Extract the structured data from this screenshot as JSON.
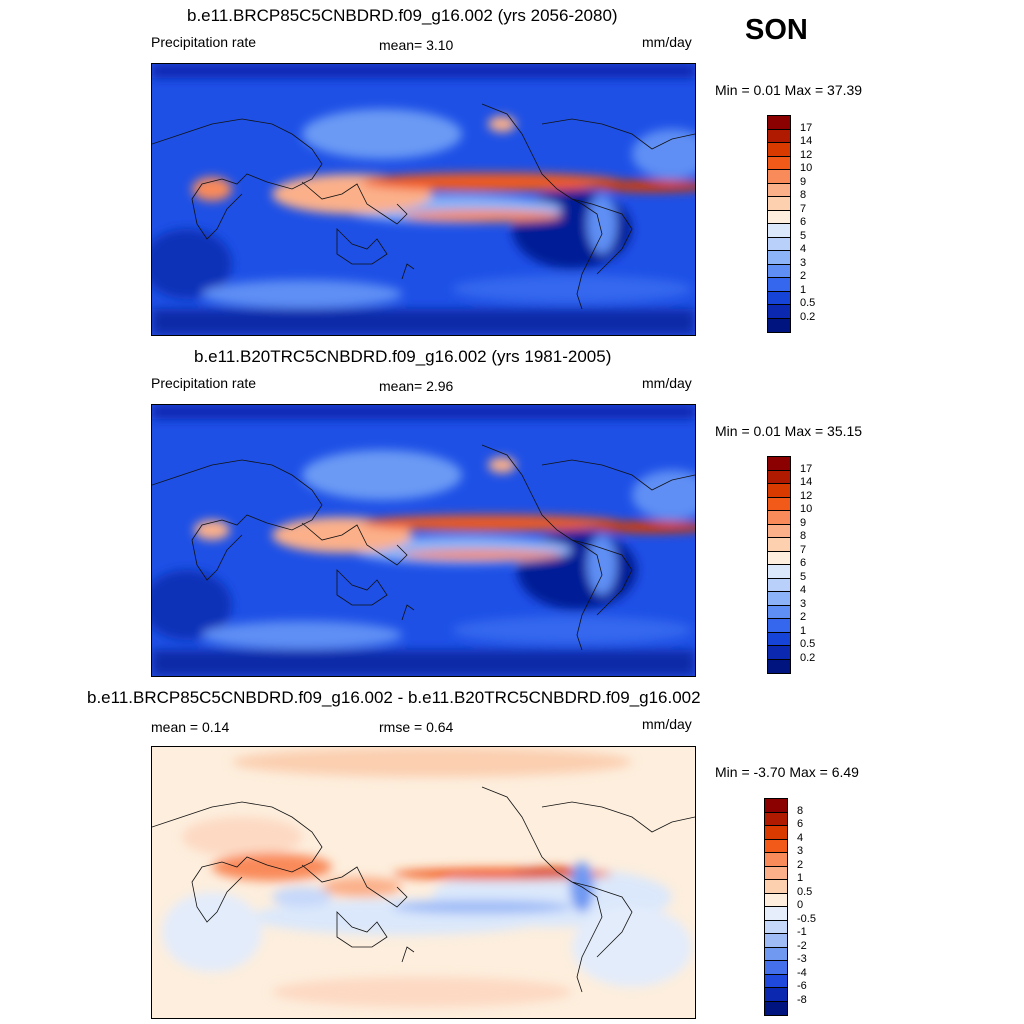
{
  "season": "SON",
  "panels": [
    {
      "title": "b.e11.BRCP85C5CNBDRD.f09_g16.002 (yrs 2056-2080)",
      "left_label": "Precipitation rate",
      "center_label": "mean=   3.10",
      "units": "mm/day",
      "minmax": "Min =   0.01 Max =  37.39",
      "colorbar_labels": [
        "17",
        "14",
        "12",
        "10",
        "9",
        "8",
        "7",
        "6",
        "5",
        "4",
        "3",
        "2",
        "1",
        "0.5",
        "0.2"
      ],
      "colorbar_colors": [
        "#8b0000",
        "#b01a00",
        "#d83a00",
        "#f25a1a",
        "#f98a5a",
        "#fbb08a",
        "#fdd0b0",
        "#fdeedd",
        "#dbe8fb",
        "#b8d0fa",
        "#8cb2f8",
        "#5f8ff4",
        "#3567ee",
        "#1744d8",
        "#0a28b0",
        "#001480"
      ]
    },
    {
      "title": "b.e11.B20TRC5CNBDRD.f09_g16.002 (yrs 1981-2005)",
      "left_label": "Precipitation rate",
      "center_label": "mean=   2.96",
      "units": "mm/day",
      "minmax": "Min =   0.01 Max =  35.15",
      "colorbar_labels": [
        "17",
        "14",
        "12",
        "10",
        "9",
        "8",
        "7",
        "6",
        "5",
        "4",
        "3",
        "2",
        "1",
        "0.5",
        "0.2"
      ],
      "colorbar_colors": [
        "#8b0000",
        "#b01a00",
        "#d83a00",
        "#f25a1a",
        "#f98a5a",
        "#fbb08a",
        "#fdd0b0",
        "#fdeedd",
        "#dbe8fb",
        "#b8d0fa",
        "#8cb2f8",
        "#5f8ff4",
        "#3567ee",
        "#1744d8",
        "#0a28b0",
        "#001480"
      ]
    },
    {
      "title": "b.e11.BRCP85C5CNBDRD.f09_g16.002 - b.e11.B20TRC5CNBDRD.f09_g16.002",
      "left_label": "mean =   0.14",
      "center_label": "rmse =   0.64",
      "units": "mm/day",
      "minmax": "Min =  -3.70 Max =   6.49",
      "colorbar_labels": [
        "8",
        "6",
        "4",
        "3",
        "2",
        "1",
        "0.5",
        "0",
        "-0.5",
        "-1",
        "-2",
        "-3",
        "-4",
        "-6",
        "-8"
      ],
      "colorbar_colors": [
        "#8b0000",
        "#b01a00",
        "#d83a00",
        "#f25a1a",
        "#f98a5a",
        "#fbb08a",
        "#fdd0b0",
        "#fdeedd",
        "#e6eefb",
        "#c6d8fa",
        "#9fbcf7",
        "#7099f2",
        "#4470ec",
        "#1f48dc",
        "#0a28b0",
        "#001480"
      ]
    }
  ]
}
